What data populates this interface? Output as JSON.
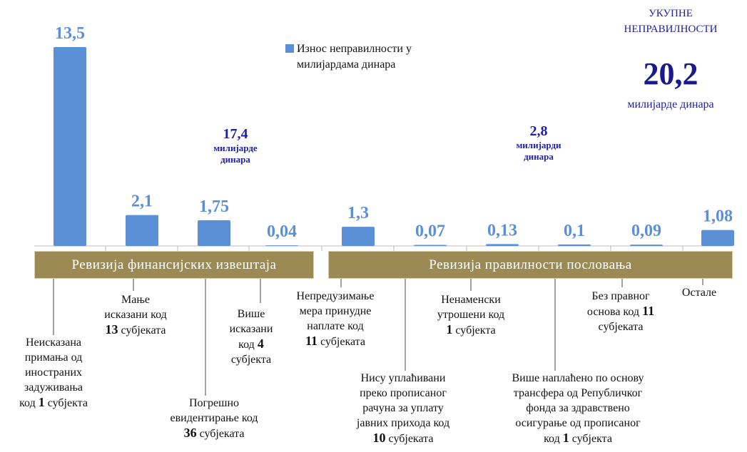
{
  "chart_data": {
    "type": "bar",
    "categories": [
      "Неисказана\nпримања од\nиностраних\nзадуживања\nкод 1 субјекта",
      "Мање\nисказани код\n13 субјеката",
      "Погрешно\nевидентирање код\n36 субјеката",
      "Више\nисказани\nкод 4\nсубјекта",
      "Непредузимање\nмера принудне\nнаплате код\n11 субјеката",
      "Нису уплаћивани\nпреко прописаног\nрачуна за уплату\nјавних прихода код\n10 субјеката",
      "Ненаменски\nутрошени код\n1 субјекта",
      "Више наплаћено по основу\nтрансфера од Републичког\nфонда за здравствено\nосигурање од прописаног\nкод 1 субјекта",
      "Без правног\nоснова код 11\nсубјеката",
      "Остале"
    ],
    "values": [
      13.5,
      2.1,
      1.75,
      0.04,
      1.3,
      0.07,
      0.13,
      0.1,
      0.09,
      1.08
    ],
    "value_labels": [
      "13,5",
      "2,1",
      "1,75",
      "0,04",
      "1,3",
      "0,07",
      "0,13",
      "0,1",
      "0,09",
      "1,08"
    ],
    "color": "#5b8fd6",
    "ylim": [
      0,
      13.5
    ],
    "series_name": "Износ неправилности у\nмилијардама динара",
    "groups": [
      {
        "name": "Ревизија финансијских извештаја",
        "total": 17.4,
        "total_label": "17,4",
        "unit": "милијарде\nдинара"
      },
      {
        "name": "Ревизија правилности пословања",
        "total": 2.8,
        "total_label": "2,8",
        "unit": "милијарди\nдинара"
      }
    ],
    "total": {
      "title": "УКУПНЕ\nНЕПРАВИЛНОСТИ",
      "value": 20.2,
      "label": "20,2",
      "unit": "милијарде динара"
    }
  }
}
